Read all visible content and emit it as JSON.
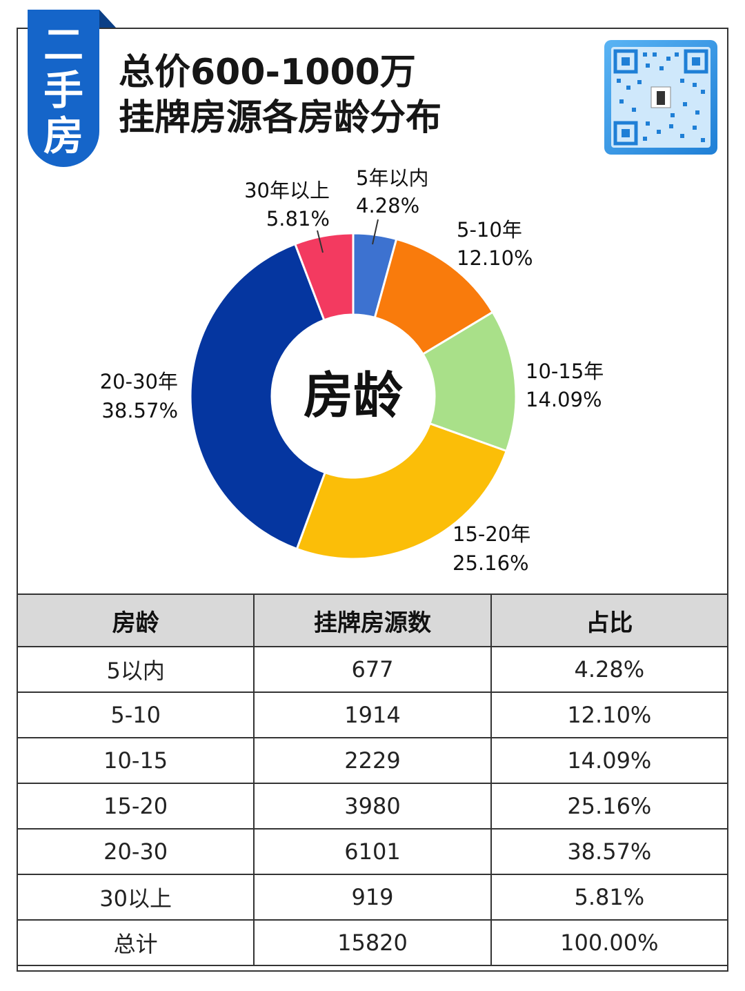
{
  "badge": {
    "text": "二手房"
  },
  "title": {
    "line1": "总价600-1000万",
    "line2": "挂牌房源各房龄分布"
  },
  "qr": {
    "icon": "qr-code-icon"
  },
  "chart_data": {
    "type": "pie",
    "donut": true,
    "center_label": "房龄",
    "slices": [
      {
        "label": "5年以内",
        "pct_label": "4.28%",
        "value": 4.28,
        "color": "#3d72d0"
      },
      {
        "label": "5-10年",
        "pct_label": "12.10%",
        "value": 12.1,
        "color": "#f97b0c"
      },
      {
        "label": "10-15年",
        "pct_label": "14.09%",
        "value": 14.09,
        "color": "#a9e089"
      },
      {
        "label": "15-20年",
        "pct_label": "25.16%",
        "value": 25.16,
        "color": "#fbbe08"
      },
      {
        "label": "20-30年",
        "pct_label": "38.57%",
        "value": 38.57,
        "color": "#0536a0"
      },
      {
        "label": "30年以上",
        "pct_label": "5.81%",
        "value": 5.81,
        "color": "#f33a60"
      }
    ]
  },
  "table": {
    "headers": [
      "房龄",
      "挂牌房源数",
      "占比"
    ],
    "rows": [
      [
        "5以内",
        "677",
        "4.28%"
      ],
      [
        "5-10",
        "1914",
        "12.10%"
      ],
      [
        "10-15",
        "2229",
        "14.09%"
      ],
      [
        "15-20",
        "3980",
        "25.16%"
      ],
      [
        "20-30",
        "6101",
        "38.57%"
      ],
      [
        "30以上",
        "919",
        "5.81%"
      ],
      [
        "总计",
        "15820",
        "100.00%"
      ]
    ]
  }
}
